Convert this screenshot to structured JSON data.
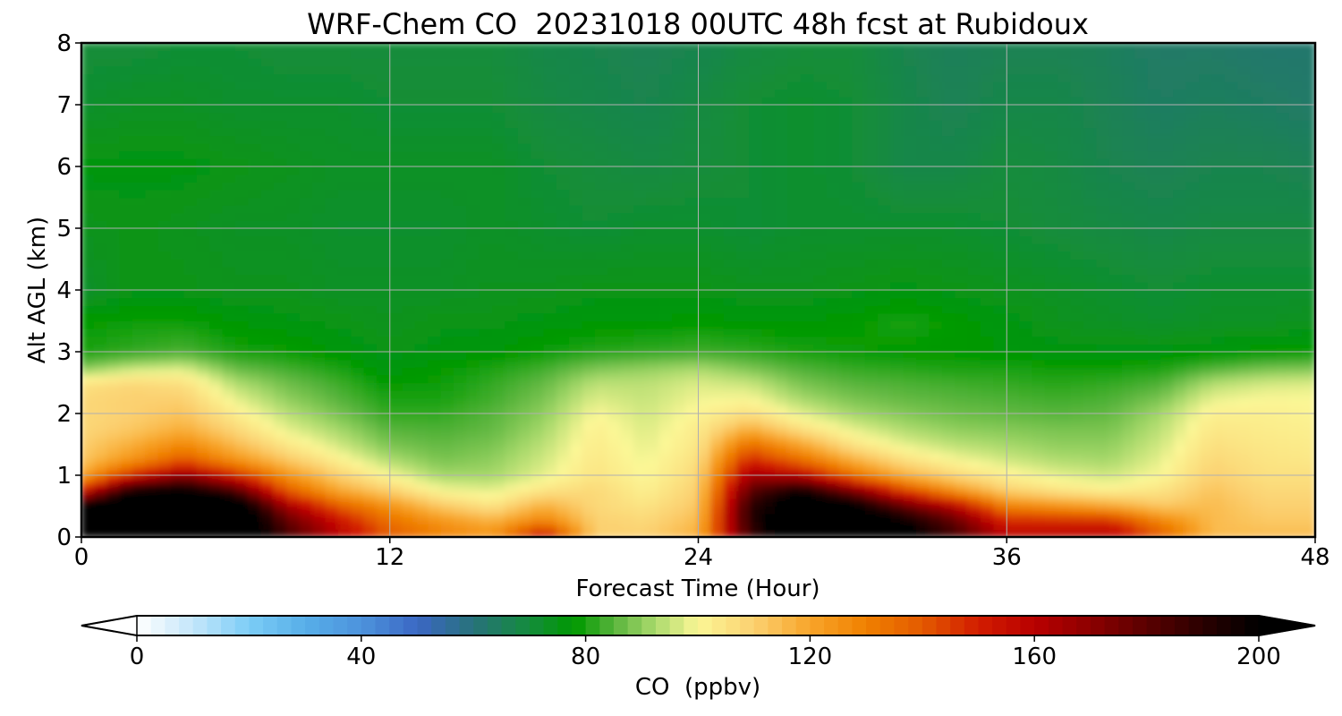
{
  "chart_data": {
    "type": "heatmap",
    "title": "WRF-Chem CO  20231018 00UTC 48h fcst at Rubidoux",
    "xlabel": "Forecast Time (Hour)",
    "ylabel": "Alt AGL (km)",
    "xlim": [
      0,
      48
    ],
    "ylim": [
      0,
      8
    ],
    "x_ticks": [
      0,
      12,
      24,
      36,
      48
    ],
    "y_ticks": [
      0,
      1,
      2,
      3,
      4,
      5,
      6,
      7,
      8
    ],
    "grid": true,
    "colorbar": {
      "label": "CO  (ppbv)",
      "vmin": 0,
      "vmax": 200,
      "ticks": [
        0,
        40,
        80,
        120,
        160,
        200
      ],
      "extend": "both",
      "orientation": "horizontal",
      "under_color": "#ffffff",
      "over_color": "#000000",
      "colormap_stops": [
        {
          "value": 0,
          "color": "#ffffff"
        },
        {
          "value": 10,
          "color": "#c4e6fa"
        },
        {
          "value": 20,
          "color": "#7ccdf6"
        },
        {
          "value": 30,
          "color": "#57aee8"
        },
        {
          "value": 40,
          "color": "#4d93dc"
        },
        {
          "value": 50,
          "color": "#3b67c4"
        },
        {
          "value": 60,
          "color": "#27727a"
        },
        {
          "value": 70,
          "color": "#148c3c"
        },
        {
          "value": 78,
          "color": "#009900"
        },
        {
          "value": 85,
          "color": "#58b43c"
        },
        {
          "value": 92,
          "color": "#a6d86a"
        },
        {
          "value": 100,
          "color": "#fbf796"
        },
        {
          "value": 110,
          "color": "#fbd070"
        },
        {
          "value": 120,
          "color": "#f8a52a"
        },
        {
          "value": 130,
          "color": "#f08000"
        },
        {
          "value": 140,
          "color": "#e35a00"
        },
        {
          "value": 150,
          "color": "#d21c00"
        },
        {
          "value": 160,
          "color": "#b80000"
        },
        {
          "value": 170,
          "color": "#8c0000"
        },
        {
          "value": 180,
          "color": "#5a0000"
        },
        {
          "value": 190,
          "color": "#2a0000"
        },
        {
          "value": 200,
          "color": "#000000"
        }
      ]
    },
    "x": [
      0,
      2,
      4,
      6,
      8,
      10,
      12,
      14,
      16,
      18,
      20,
      22,
      24,
      26,
      28,
      30,
      32,
      34,
      36,
      38,
      40,
      42,
      44,
      46,
      48
    ],
    "y": [
      0,
      0.25,
      0.5,
      0.75,
      1,
      1.25,
      1.5,
      1.75,
      2,
      2.25,
      2.5,
      2.75,
      3,
      3.5,
      4,
      5,
      6,
      7,
      8
    ],
    "z": [
      [
        220,
        215,
        220,
        220,
        185,
        160,
        140,
        130,
        125,
        160,
        110,
        110,
        118,
        185,
        215,
        215,
        205,
        185,
        160,
        160,
        160,
        140,
        115,
        115,
        115
      ],
      [
        215,
        220,
        220,
        220,
        180,
        155,
        135,
        125,
        118,
        130,
        110,
        108,
        115,
        190,
        215,
        210,
        200,
        180,
        150,
        150,
        150,
        130,
        115,
        112,
        112
      ],
      [
        205,
        220,
        220,
        215,
        165,
        140,
        125,
        112,
        105,
        118,
        108,
        105,
        112,
        190,
        210,
        205,
        180,
        160,
        130,
        125,
        120,
        112,
        115,
        110,
        110
      ],
      [
        150,
        200,
        205,
        185,
        140,
        120,
        110,
        100,
        98,
        105,
        108,
        102,
        110,
        180,
        200,
        175,
        145,
        125,
        110,
        105,
        102,
        105,
        113,
        108,
        108
      ],
      [
        120,
        150,
        170,
        150,
        125,
        110,
        100,
        92,
        92,
        98,
        105,
        100,
        108,
        165,
        160,
        135,
        118,
        108,
        102,
        98,
        96,
        100,
        110,
        106,
        106
      ],
      [
        112,
        125,
        140,
        125,
        112,
        102,
        93,
        88,
        90,
        96,
        104,
        99,
        106,
        150,
        135,
        118,
        106,
        100,
        96,
        93,
        92,
        98,
        108,
        105,
        104
      ],
      [
        110,
        118,
        128,
        115,
        104,
        96,
        88,
        86,
        88,
        94,
        103,
        98,
        104,
        135,
        120,
        105,
        98,
        94,
        92,
        90,
        90,
        96,
        106,
        104,
        103
      ],
      [
        108,
        112,
        118,
        108,
        98,
        92,
        85,
        84,
        86,
        92,
        102,
        97,
        103,
        118,
        106,
        98,
        93,
        90,
        89,
        88,
        88,
        94,
        104,
        103,
        102
      ],
      [
        108,
        110,
        113,
        103,
        94,
        88,
        82,
        82,
        85,
        90,
        100,
        96,
        101,
        106,
        98,
        92,
        89,
        87,
        86,
        85,
        86,
        92,
        102,
        102,
        101
      ],
      [
        108,
        110,
        110,
        98,
        90,
        85,
        80,
        80,
        83,
        88,
        97,
        95,
        99,
        100,
        92,
        88,
        86,
        85,
        84,
        83,
        84,
        88,
        98,
        100,
        100
      ],
      [
        105,
        108,
        106,
        93,
        87,
        83,
        78,
        79,
        82,
        86,
        94,
        94,
        97,
        95,
        88,
        85,
        84,
        83,
        82,
        81,
        82,
        84,
        93,
        96,
        97
      ],
      [
        88,
        94,
        96,
        86,
        83,
        80,
        76,
        78,
        80,
        83,
        88,
        90,
        92,
        88,
        84,
        82,
        81,
        80,
        80,
        79,
        79,
        80,
        84,
        87,
        88
      ],
      [
        80,
        82,
        84,
        80,
        79,
        77,
        75,
        76,
        77,
        79,
        81,
        82,
        83,
        82,
        80,
        79,
        78,
        78,
        77,
        76,
        76,
        76,
        77,
        78,
        79
      ],
      [
        78,
        79,
        79,
        77,
        76,
        75,
        74,
        75,
        75,
        76,
        77,
        77,
        78,
        77,
        77,
        78,
        80,
        78,
        76,
        74,
        73,
        72,
        73,
        73,
        74
      ],
      [
        72,
        75,
        75,
        74,
        74,
        73,
        73,
        73,
        74,
        74,
        75,
        75,
        75,
        74,
        74,
        75,
        76,
        75,
        74,
        73,
        72,
        71,
        72,
        72,
        72
      ],
      [
        74,
        75,
        74,
        73,
        73,
        72,
        72,
        72,
        73,
        72,
        71,
        72,
        72,
        71,
        72,
        72,
        72,
        72,
        71,
        70,
        69,
        68,
        69,
        69,
        69
      ],
      [
        76,
        76,
        76,
        75,
        74,
        73,
        73,
        73,
        73,
        71,
        70,
        69,
        70,
        71,
        72,
        71,
        68,
        68,
        70,
        69,
        67,
        66,
        67,
        67,
        66
      ],
      [
        72,
        73,
        73,
        72,
        72,
        72,
        71,
        71,
        71,
        69,
        68,
        67,
        69,
        71,
        72,
        71,
        68,
        66,
        68,
        68,
        66,
        64,
        65,
        64,
        63
      ],
      [
        70,
        70,
        71,
        71,
        70,
        70,
        70,
        70,
        70,
        68,
        67,
        66,
        67,
        69,
        70,
        70,
        67,
        65,
        66,
        66,
        65,
        63,
        63,
        62,
        62
      ]
    ]
  }
}
